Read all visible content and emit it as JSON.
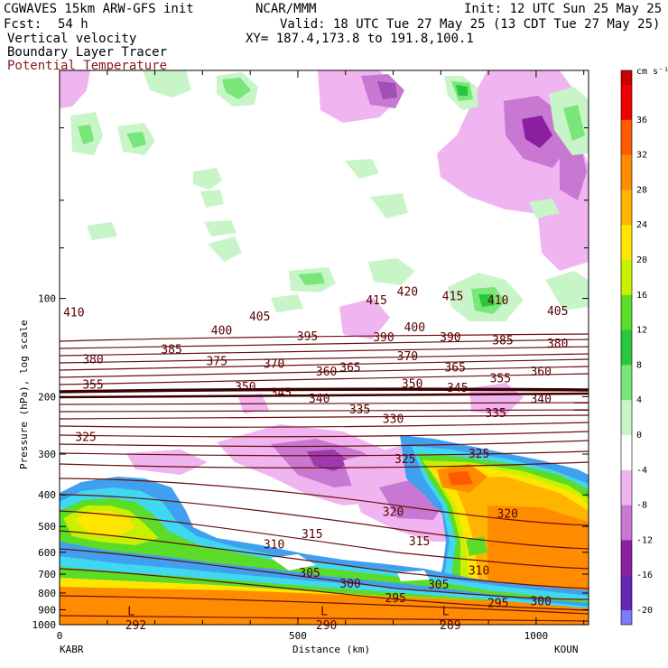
{
  "header": {
    "model": "CGWAVES 15km ARW-GFS init",
    "org": "NCAR/MMM",
    "init": "Init: 12 UTC Sun 25 May 25",
    "fcst_label": "Fcst:",
    "fcst_value": "54 h",
    "valid": "Valid: 18 UTC Tue 27 May 25 (13 CDT Tue 27 May 25)",
    "field1": "Vertical velocity",
    "xy": "XY= 187.4,173.8 to 191.8,100.1",
    "field2": "Boundary Layer Tracer",
    "field3": "Potential Temperature",
    "field3_color": "#8b1a1a"
  },
  "chart_data": {
    "type": "cross-section",
    "xlabel": "Distance (km)",
    "ylabel": "Pressure (hPa), log scale",
    "x_ticks": [
      "0",
      "500",
      "1000"
    ],
    "x_range": [
      0,
      1110
    ],
    "x_end_left": "KABR",
    "x_end_right": "KOUN",
    "y_scale": "log",
    "y_range": [
      1000,
      20
    ],
    "y_ticks": [
      "100",
      "200",
      "300",
      "400",
      "500",
      "600",
      "700",
      "800",
      "900",
      "1000"
    ],
    "colorbar_unit": "cm s⁻¹",
    "colorbar": [
      {
        "label": "36",
        "color": "#f00000"
      },
      {
        "label": "32",
        "color": "#ff5a00"
      },
      {
        "label": "28",
        "color": "#ff8c00"
      },
      {
        "label": "24",
        "color": "#ffb400"
      },
      {
        "label": "20",
        "color": "#ffe600"
      },
      {
        "label": "16",
        "color": "#c8f000"
      },
      {
        "label": "12",
        "color": "#5adc28"
      },
      {
        "label": "8",
        "color": "#28c83c"
      },
      {
        "label": "4",
        "color": "#78e678"
      },
      {
        "label": "0",
        "color": "#c8f5c8"
      },
      {
        "label": "-4",
        "color": "#ffffff"
      },
      {
        "label": "-8",
        "color": "#f0b4f0"
      },
      {
        "label": "-12",
        "color": "#c878d2"
      },
      {
        "label": "-16",
        "color": "#8c1ea0"
      },
      {
        "label": "-20",
        "color": "#6428b4"
      }
    ],
    "colorbar_bottom_color": "#7a7aff",
    "theta_labels": [
      {
        "text": "410",
        "x": 30,
        "p": 110
      },
      {
        "text": "405",
        "x": 420,
        "p": 113
      },
      {
        "text": "400",
        "x": 340,
        "p": 125
      },
      {
        "text": "395",
        "x": 520,
        "p": 130
      },
      {
        "text": "390",
        "x": 680,
        "p": 131
      },
      {
        "text": "400",
        "x": 745,
        "p": 122
      },
      {
        "text": "390",
        "x": 820,
        "p": 131
      },
      {
        "text": "385",
        "x": 930,
        "p": 134
      },
      {
        "text": "380",
        "x": 1045,
        "p": 137
      },
      {
        "text": "405",
        "x": 1045,
        "p": 109
      },
      {
        "text": "410",
        "x": 920,
        "p": 101
      },
      {
        "text": "415",
        "x": 665,
        "p": 101
      },
      {
        "text": "420",
        "x": 730,
        "p": 95
      },
      {
        "text": "415",
        "x": 825,
        "p": 98
      },
      {
        "text": "385",
        "x": 235,
        "p": 143
      },
      {
        "text": "380",
        "x": 70,
        "p": 153
      },
      {
        "text": "375",
        "x": 330,
        "p": 155
      },
      {
        "text": "370",
        "x": 450,
        "p": 158
      },
      {
        "text": "370",
        "x": 730,
        "p": 150
      },
      {
        "text": "365",
        "x": 610,
        "p": 162
      },
      {
        "text": "365",
        "x": 830,
        "p": 162
      },
      {
        "text": "360",
        "x": 560,
        "p": 167
      },
      {
        "text": "360",
        "x": 1010,
        "p": 167
      },
      {
        "text": "355",
        "x": 70,
        "p": 183
      },
      {
        "text": "355",
        "x": 925,
        "p": 175
      },
      {
        "text": "350",
        "x": 390,
        "p": 186
      },
      {
        "text": "350",
        "x": 740,
        "p": 182
      },
      {
        "text": "345",
        "x": 465,
        "p": 194
      },
      {
        "text": "345",
        "x": 835,
        "p": 187
      },
      {
        "text": "340",
        "x": 545,
        "p": 202
      },
      {
        "text": "340",
        "x": 1010,
        "p": 203
      },
      {
        "text": "335",
        "x": 630,
        "p": 218
      },
      {
        "text": "335",
        "x": 915,
        "p": 224
      },
      {
        "text": "330",
        "x": 700,
        "p": 233
      },
      {
        "text": "325",
        "x": 55,
        "p": 265
      },
      {
        "text": "325",
        "x": 725,
        "p": 310
      },
      {
        "text": "325",
        "x": 880,
        "p": 298
      },
      {
        "text": "320",
        "x": 700,
        "p": 450
      },
      {
        "text": "320",
        "x": 940,
        "p": 455
      },
      {
        "text": "315",
        "x": 530,
        "p": 525
      },
      {
        "text": "315",
        "x": 755,
        "p": 553
      },
      {
        "text": "310",
        "x": 450,
        "p": 565
      },
      {
        "text": "310",
        "x": 880,
        "p": 680
      },
      {
        "text": "305",
        "x": 525,
        "p": 690
      },
      {
        "text": "305",
        "x": 795,
        "p": 750
      },
      {
        "text": "300",
        "x": 610,
        "p": 745
      },
      {
        "text": "300",
        "x": 1010,
        "p": 845
      },
      {
        "text": "295",
        "x": 705,
        "p": 825
      },
      {
        "text": "295",
        "x": 920,
        "p": 855
      },
      {
        "text": "292",
        "x": 160,
        "p": 1000
      },
      {
        "text": "290",
        "x": 560,
        "p": 1000
      },
      {
        "text": "289",
        "x": 820,
        "p": 1000
      }
    ],
    "low_markers": [
      {
        "text": "L",
        "x": 150,
        "p": 935
      },
      {
        "text": "L",
        "x": 555,
        "p": 935
      },
      {
        "text": "L",
        "x": 810,
        "p": 935
      }
    ]
  }
}
